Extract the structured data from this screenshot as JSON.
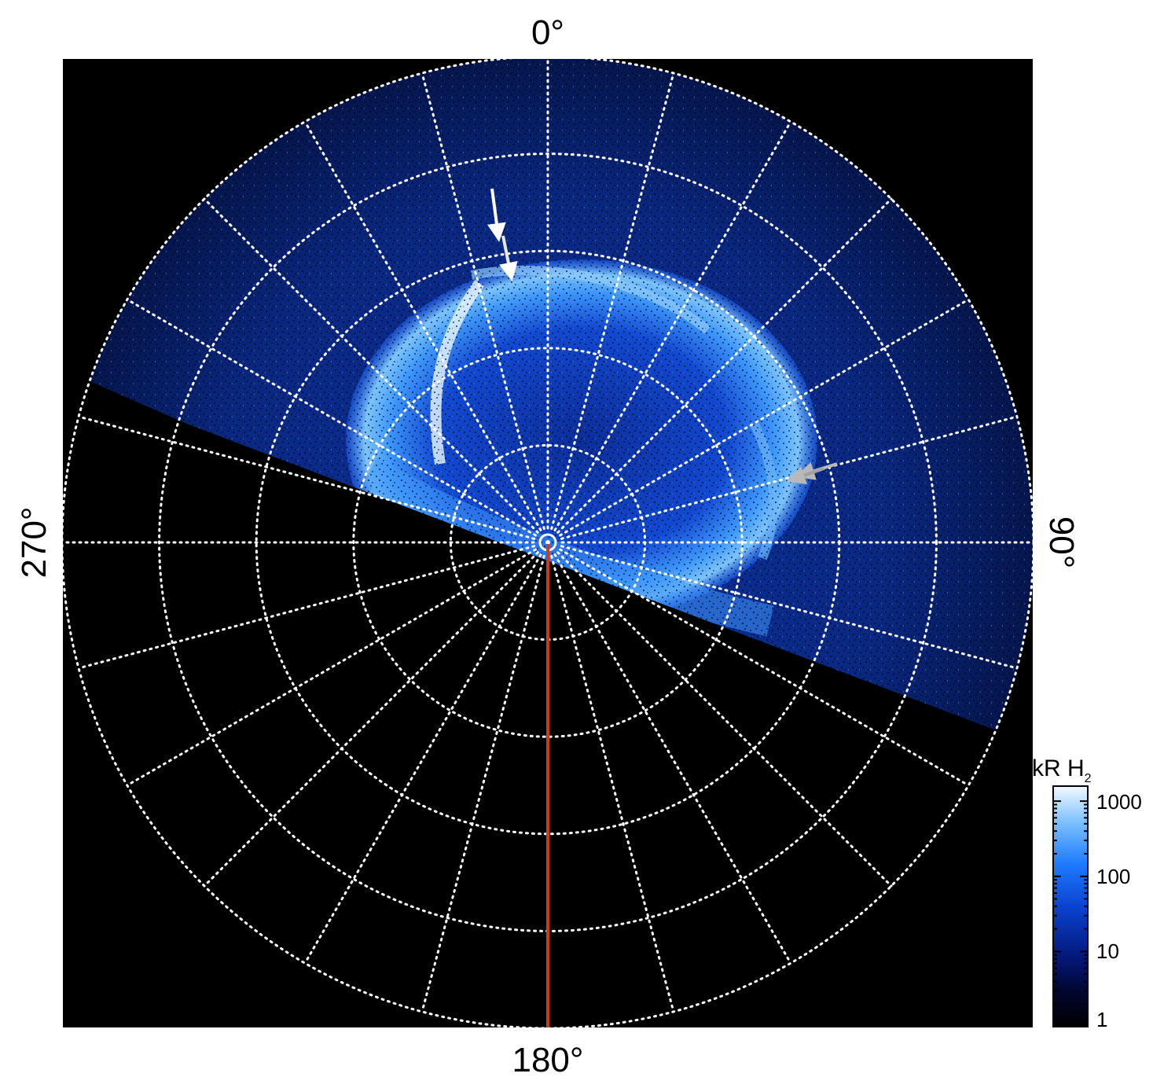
{
  "labels": {
    "top": "0°",
    "bottom": "180°",
    "left": "270°",
    "right": "90°"
  },
  "colorbar": {
    "title": "kR H",
    "title_subscript": "2",
    "scale": "log",
    "ticks": [
      "1000",
      "100",
      "10",
      "1"
    ]
  },
  "colors": {
    "background": "#000000",
    "grid": "#ffffff",
    "meridian_line": "#d03a1a",
    "aurora_dim": "#0a2a9e",
    "aurora_mid": "#1f74ff",
    "aurora_bright": "#dff1ff",
    "arrow_white": "#ffffff",
    "arrow_gray": "#b8b8b8"
  },
  "grid": {
    "ring_count": 5,
    "meridian_count": 24,
    "style": "dotted"
  }
}
